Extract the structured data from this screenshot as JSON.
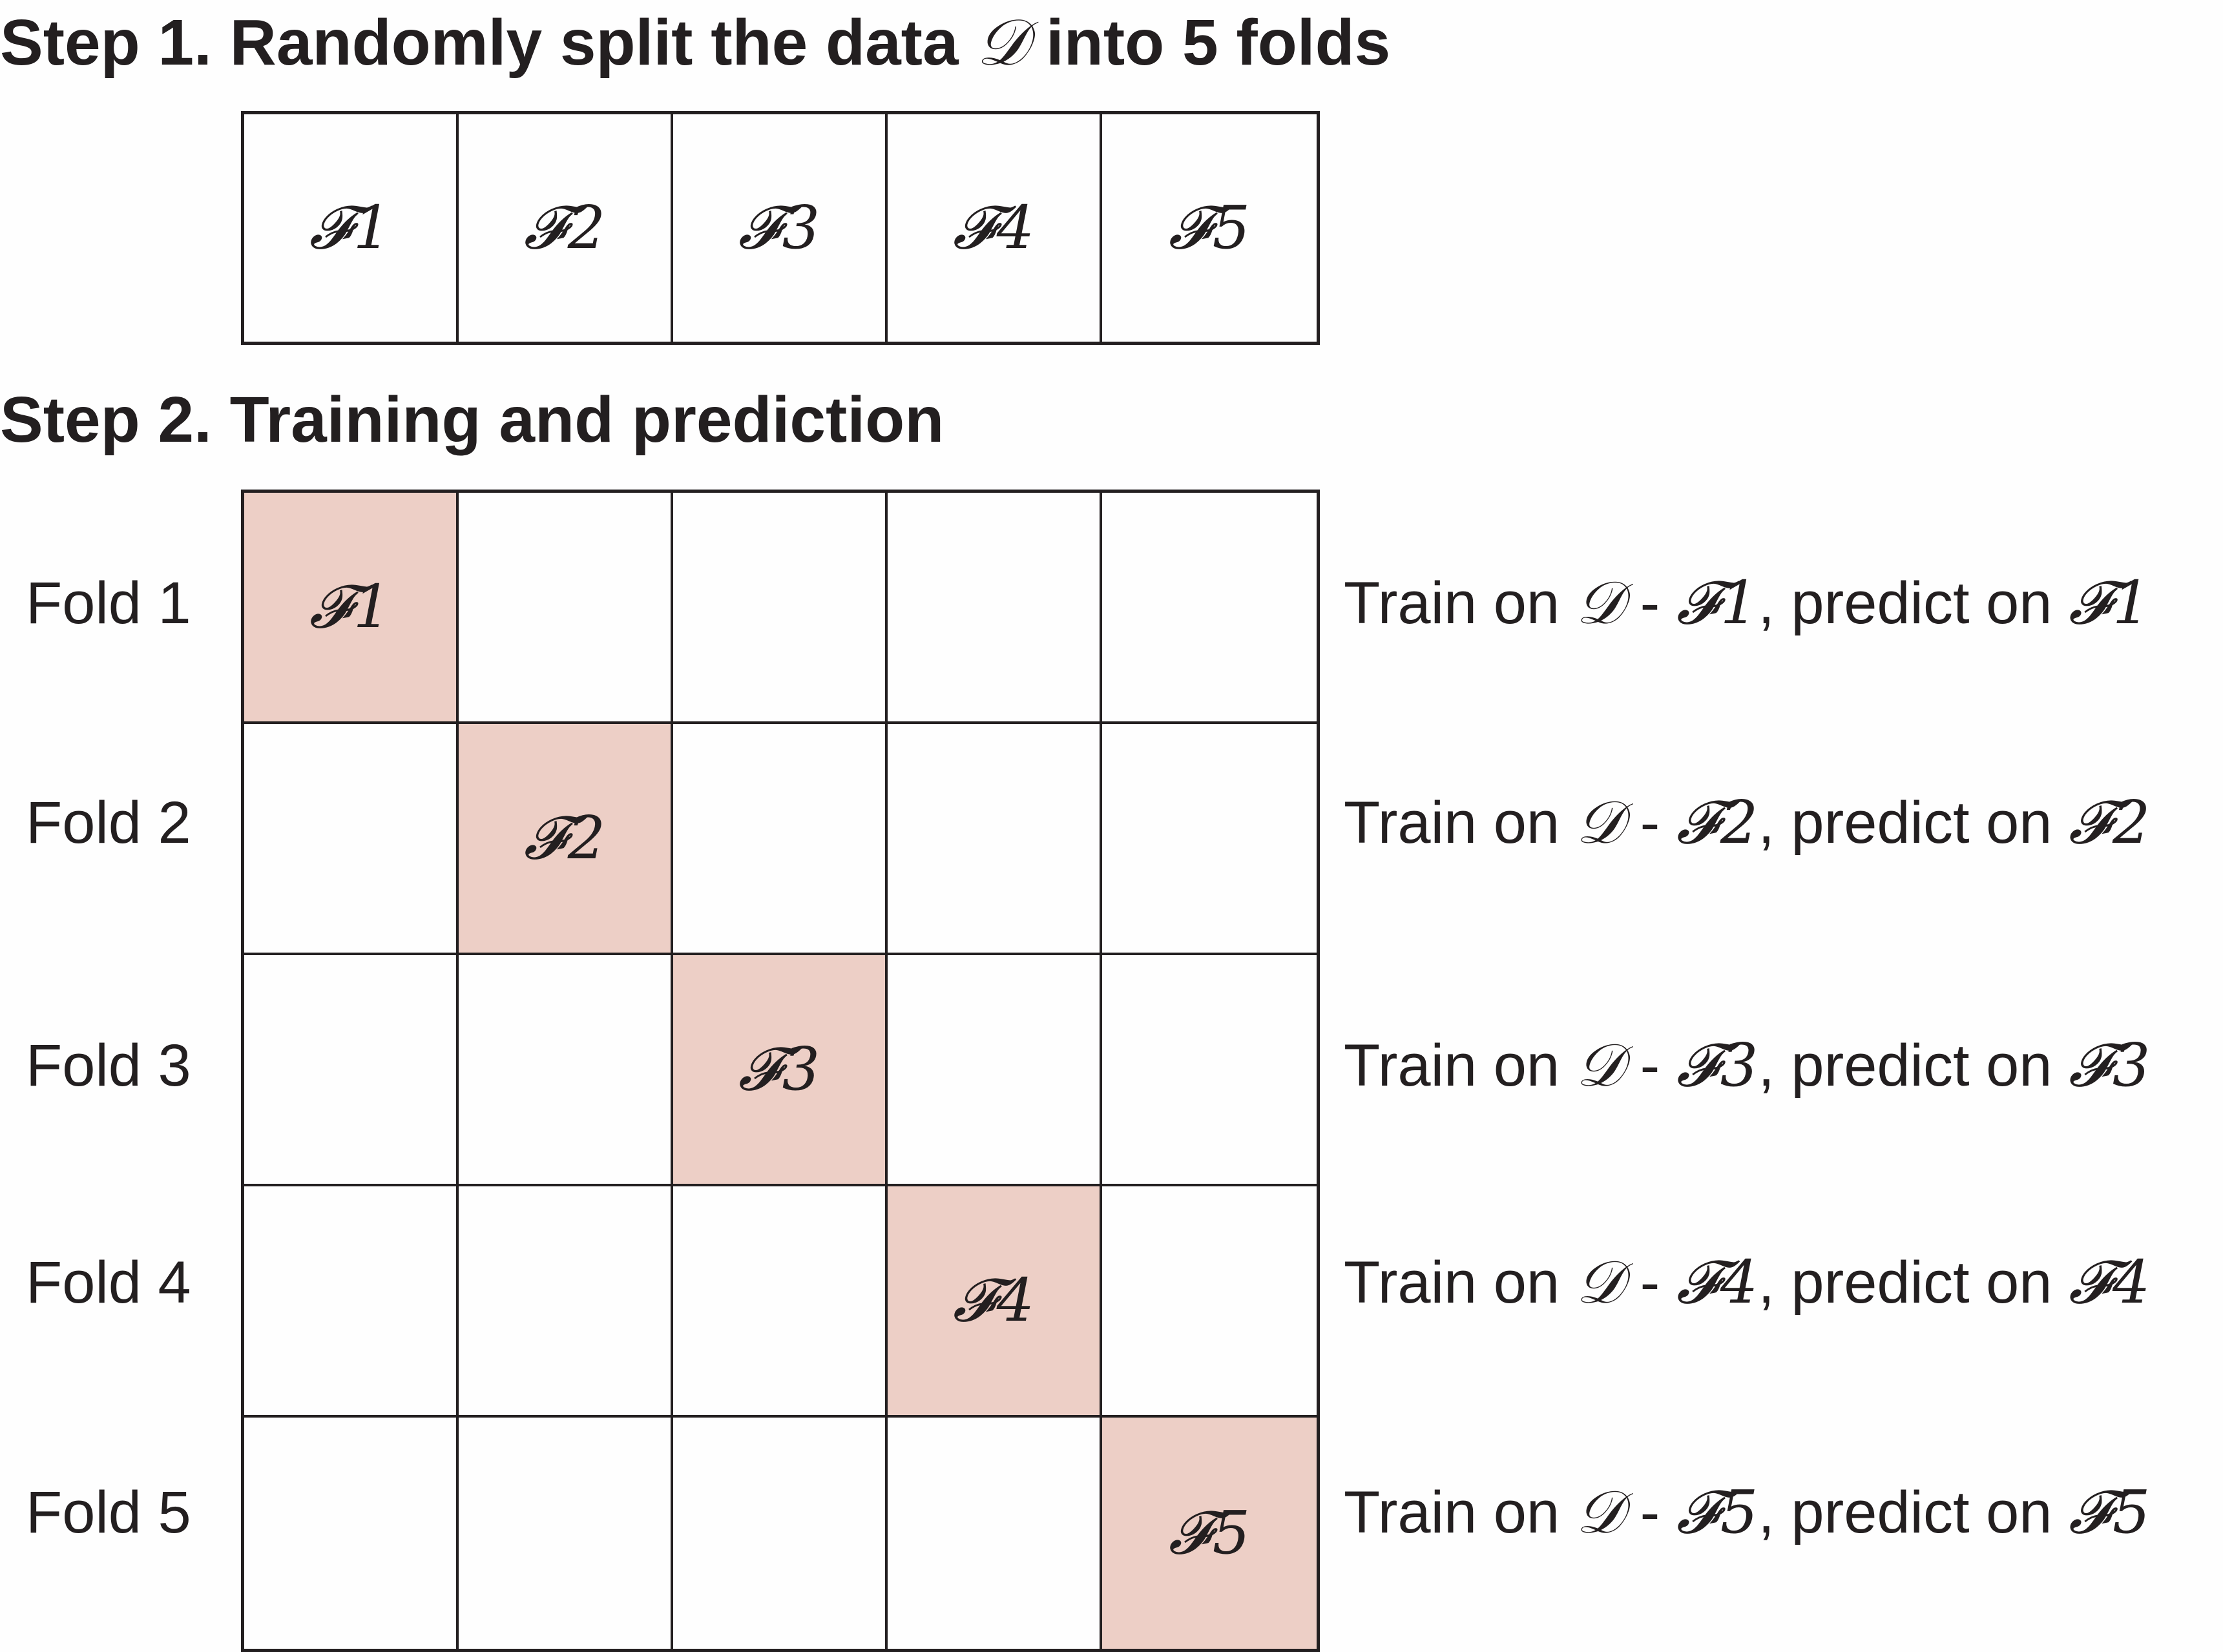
{
  "step1": {
    "title_prefix": "Step 1. Randomly split the data ",
    "data_symbol": "𝒟",
    "title_suffix": " into 5 folds",
    "folds": [
      "𝓕1",
      "𝓕2",
      "𝓕3",
      "𝓕4",
      "𝓕5"
    ]
  },
  "step2": {
    "title": "Step 2. Training and prediction",
    "rows": [
      {
        "label": "Fold 1",
        "test_fold": "𝓕1",
        "desc_train": "Train on ",
        "data_symbol": "𝒟",
        "minus": " - ",
        "train_fold": "𝓕1",
        "desc_predict": ", predict on ",
        "predict_fold": "𝓕1"
      },
      {
        "label": "Fold 2",
        "test_fold": "𝓕2",
        "desc_train": "Train on ",
        "data_symbol": "𝒟",
        "minus": " - ",
        "train_fold": "𝓕2",
        "desc_predict": ", predict on ",
        "predict_fold": "𝓕2"
      },
      {
        "label": "Fold 3",
        "test_fold": "𝓕3",
        "desc_train": "Train on ",
        "data_symbol": "𝒟",
        "minus": " - ",
        "train_fold": "𝓕3",
        "desc_predict": ", predict on ",
        "predict_fold": "𝓕3"
      },
      {
        "label": "Fold 4",
        "test_fold": "𝓕4",
        "desc_train": "Train on ",
        "data_symbol": "𝒟",
        "minus": " - ",
        "train_fold": "𝓕4",
        "desc_predict": ", predict on ",
        "predict_fold": "𝓕4"
      },
      {
        "label": "Fold 5",
        "test_fold": "𝓕5",
        "desc_train": "Train on ",
        "data_symbol": "𝒟",
        "minus": " - ",
        "train_fold": "𝓕5",
        "desc_predict": ", predict on ",
        "predict_fold": "𝓕5"
      }
    ]
  },
  "colors": {
    "highlight": "#edcfc6",
    "line": "#231f20",
    "background": "#fefefe"
  }
}
